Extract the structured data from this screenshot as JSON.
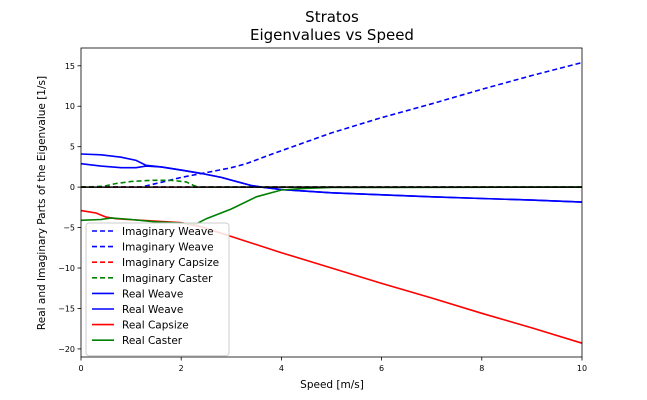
{
  "chart_data": {
    "type": "line",
    "title": "Stratos",
    "subtitle": "Eigenvalues vs Speed",
    "xlabel": "Speed [m/s]",
    "ylabel": "Real and Imaginary Parts of the Eigenvalue [1/s]",
    "xlim": [
      0,
      10
    ],
    "ylim": [
      -21,
      17.2
    ],
    "xticks": [
      0,
      2,
      4,
      6,
      8,
      10
    ],
    "yticks": [
      -20,
      -15,
      -10,
      -5,
      0,
      5,
      10,
      15
    ],
    "grid": false,
    "legend_position": "lower-left",
    "reference_line": {
      "y": 0,
      "color": "#000000"
    },
    "series": [
      {
        "name": "Imaginary Weave",
        "style": "dashed",
        "color": "#0000ff",
        "points": [
          [
            0,
            0
          ],
          [
            1.2,
            0
          ],
          [
            1.6,
            0.6
          ],
          [
            2,
            1.2
          ],
          [
            2.5,
            1.8
          ],
          [
            3,
            2.4
          ],
          [
            3.3,
            2.9
          ],
          [
            3.6,
            3.6
          ],
          [
            4,
            4.5
          ],
          [
            5,
            6.7
          ],
          [
            6,
            8.6
          ],
          [
            7,
            10.3
          ],
          [
            8,
            12.1
          ],
          [
            9,
            13.8
          ],
          [
            10,
            15.4
          ]
        ]
      },
      {
        "name": "Imaginary Weave",
        "style": "dashed",
        "color": "#0000ff",
        "points": [
          [
            0,
            0
          ],
          [
            10,
            0
          ]
        ]
      },
      {
        "name": "Imaginary Capsize",
        "style": "dashed",
        "color": "#ff0000",
        "points": [
          [
            0,
            0
          ],
          [
            10,
            0
          ]
        ]
      },
      {
        "name": "Imaginary Caster",
        "style": "dashed",
        "color": "#008000",
        "points": [
          [
            0,
            0
          ],
          [
            0.45,
            0.1
          ],
          [
            0.7,
            0.45
          ],
          [
            1,
            0.7
          ],
          [
            1.4,
            0.85
          ],
          [
            1.8,
            0.85
          ],
          [
            2.1,
            0.65
          ],
          [
            2.25,
            0.2
          ],
          [
            2.35,
            0
          ],
          [
            10,
            0
          ]
        ]
      },
      {
        "name": "Real Weave",
        "style": "solid",
        "color": "#0000ff",
        "points": [
          [
            0,
            4.1
          ],
          [
            0.4,
            4.0
          ],
          [
            0.8,
            3.7
          ],
          [
            1.1,
            3.3
          ],
          [
            1.3,
            2.7
          ],
          [
            1.6,
            2.5
          ],
          [
            2,
            2.1
          ],
          [
            2.4,
            1.7
          ],
          [
            2.8,
            1.2
          ],
          [
            3.1,
            0.7
          ],
          [
            3.4,
            0.2
          ],
          [
            3.6,
            0
          ],
          [
            4,
            -0.3
          ],
          [
            5,
            -0.7
          ],
          [
            6,
            -0.95
          ],
          [
            7,
            -1.2
          ],
          [
            8,
            -1.4
          ],
          [
            9,
            -1.6
          ],
          [
            10,
            -1.85
          ]
        ]
      },
      {
        "name": "Real Weave",
        "style": "solid",
        "color": "#0000ff",
        "points": [
          [
            0,
            2.9
          ],
          [
            0.4,
            2.6
          ],
          [
            0.8,
            2.4
          ],
          [
            1.1,
            2.4
          ],
          [
            1.3,
            2.6
          ],
          [
            1.6,
            2.5
          ],
          [
            2,
            2.1
          ],
          [
            2.4,
            1.7
          ],
          [
            2.8,
            1.2
          ],
          [
            3.1,
            0.7
          ],
          [
            3.4,
            0.2
          ],
          [
            3.6,
            0
          ],
          [
            4,
            -0.3
          ],
          [
            5,
            -0.7
          ],
          [
            6,
            -0.95
          ],
          [
            7,
            -1.2
          ],
          [
            8,
            -1.4
          ],
          [
            9,
            -1.6
          ],
          [
            10,
            -1.85
          ]
        ]
      },
      {
        "name": "Real Capsize",
        "style": "solid",
        "color": "#ff0000",
        "points": [
          [
            0,
            -2.9
          ],
          [
            0.3,
            -3.2
          ],
          [
            0.5,
            -3.7
          ],
          [
            0.7,
            -3.9
          ],
          [
            2,
            -4.4
          ],
          [
            2.4,
            -4.9
          ],
          [
            3,
            -6.1
          ],
          [
            4,
            -8.1
          ],
          [
            5,
            -10.0
          ],
          [
            6,
            -11.9
          ],
          [
            7,
            -13.7
          ],
          [
            8,
            -15.6
          ],
          [
            9,
            -17.4
          ],
          [
            10,
            -19.3
          ]
        ]
      },
      {
        "name": "Real Caster",
        "style": "solid",
        "color": "#008000",
        "points": [
          [
            0,
            -4.1
          ],
          [
            0.4,
            -4.0
          ],
          [
            0.6,
            -3.8
          ],
          [
            1,
            -4.0
          ],
          [
            1.5,
            -4.3
          ],
          [
            2,
            -4.45
          ],
          [
            2.3,
            -4.55
          ],
          [
            2.5,
            -3.9
          ],
          [
            3,
            -2.7
          ],
          [
            3.5,
            -1.2
          ],
          [
            4,
            -0.35
          ],
          [
            4.5,
            -0.15
          ],
          [
            5,
            -0.05
          ],
          [
            10,
            0
          ]
        ]
      }
    ]
  }
}
